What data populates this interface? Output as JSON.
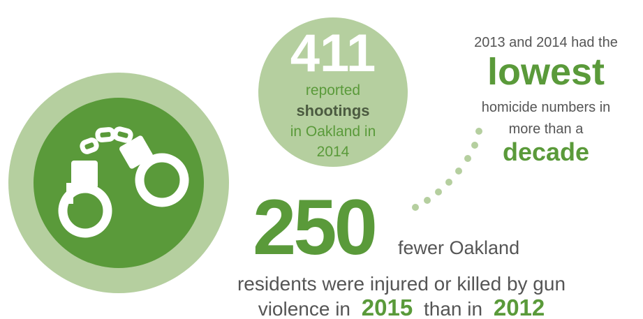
{
  "shootings": {
    "number": "411",
    "line1": "reported",
    "line2": "shootings",
    "line3": "in Oakland in",
    "line4": "2014"
  },
  "homicides": {
    "line1": "2013 and 2014 had the",
    "emphasis1": "lowest",
    "line2": "homicide numbers in",
    "line3": "more than a",
    "emphasis2": "decade"
  },
  "injuries": {
    "number": "250",
    "line1": "fewer Oakland",
    "line2": "residents were injured or killed by gun",
    "line3a": "violence in",
    "year1": "2015",
    "line3b": "than in",
    "year2": "2012"
  }
}
